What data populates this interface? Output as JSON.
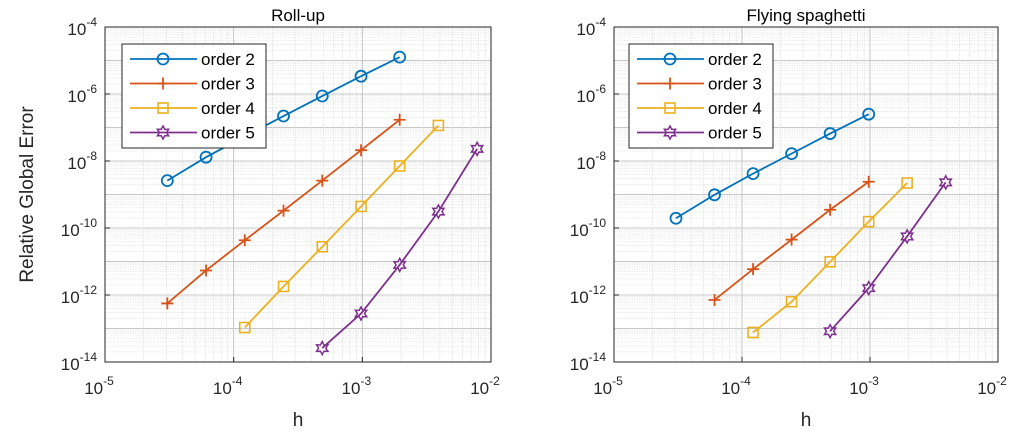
{
  "chart_data": [
    {
      "type": "line",
      "title": "Roll-up",
      "xlabel": "h",
      "ylabel": "Relative Global Error",
      "xscale": "log",
      "yscale": "log",
      "xlim": [
        1e-05,
        0.01
      ],
      "ylim": [
        1e-14,
        0.0001
      ],
      "grid": true,
      "legend_position": "top-left",
      "xticks": [
        {
          "base": "10",
          "exp": "-5"
        },
        {
          "base": "10",
          "exp": "-4"
        },
        {
          "base": "10",
          "exp": "-3"
        },
        {
          "base": "10",
          "exp": "-2"
        }
      ],
      "yticks": [
        {
          "base": "10",
          "exp": "-14"
        },
        {
          "base": "10",
          "exp": "-12"
        },
        {
          "base": "10",
          "exp": "-10"
        },
        {
          "base": "10",
          "exp": "-8"
        },
        {
          "base": "10",
          "exp": "-6"
        },
        {
          "base": "10",
          "exp": "-4"
        }
      ],
      "series": [
        {
          "name": "order 2",
          "color": "#0072BD",
          "marker": "circle",
          "x": [
            3.05e-05,
            6.1e-05,
            0.000122,
            0.000244,
            0.000488,
            0.000977,
            0.00195
          ],
          "y": [
            2.6e-09,
            1.3e-08,
            5.4e-08,
            2.2e-07,
            8.7e-07,
            3.4e-06,
            1.26e-05
          ]
        },
        {
          "name": "order 3",
          "color": "#D95319",
          "marker": "plus",
          "x": [
            3.05e-05,
            6.1e-05,
            0.000122,
            0.000244,
            0.000488,
            0.000977,
            0.00195
          ],
          "y": [
            5.6e-13,
            5.4e-12,
            4.3e-11,
            3.3e-10,
            2.6e-09,
            2.1e-08,
            1.7e-07
          ]
        },
        {
          "name": "order 4",
          "color": "#EDB120",
          "marker": "square",
          "x": [
            0.000122,
            0.000244,
            0.000488,
            0.000977,
            0.00195,
            0.0039
          ],
          "y": [
            1.07e-13,
            1.8e-12,
            2.75e-11,
            4.4e-10,
            7.1e-09,
            1.15e-07
          ]
        },
        {
          "name": "order 5",
          "color": "#7E2F8E",
          "marker": "hexagram",
          "x": [
            0.000488,
            0.000977,
            0.00195,
            0.0039,
            0.0078
          ],
          "y": [
            2.6e-14,
            2.8e-13,
            7.9e-12,
            3.1e-10,
            2.3e-08
          ]
        }
      ]
    },
    {
      "type": "line",
      "title": "Flying spaghetti",
      "xlabel": "h",
      "xscale": "log",
      "yscale": "log",
      "xlim": [
        1e-05,
        0.01
      ],
      "ylim": [
        1e-14,
        0.0001
      ],
      "grid": true,
      "legend_position": "top-left",
      "xticks": [
        {
          "base": "10",
          "exp": "-5"
        },
        {
          "base": "10",
          "exp": "-4"
        },
        {
          "base": "10",
          "exp": "-3"
        },
        {
          "base": "10",
          "exp": "-2"
        }
      ],
      "yticks": [
        {
          "base": "10",
          "exp": "-14"
        },
        {
          "base": "10",
          "exp": "-12"
        },
        {
          "base": "10",
          "exp": "-10"
        },
        {
          "base": "10",
          "exp": "-8"
        },
        {
          "base": "10",
          "exp": "-6"
        },
        {
          "base": "10",
          "exp": "-4"
        }
      ],
      "series": [
        {
          "name": "order 2",
          "color": "#0072BD",
          "marker": "circle",
          "x": [
            3.05e-05,
            6.1e-05,
            0.000122,
            0.000244,
            0.000488,
            0.000977
          ],
          "y": [
            1.95e-10,
            9.8e-10,
            4.2e-09,
            1.66e-08,
            6.6e-08,
            2.5e-07
          ]
        },
        {
          "name": "order 3",
          "color": "#D95319",
          "marker": "plus",
          "x": [
            6.1e-05,
            0.000122,
            0.000244,
            0.000488,
            0.000977
          ],
          "y": [
            7.1e-13,
            5.9e-12,
            4.5e-11,
            3.5e-10,
            2.4e-09
          ]
        },
        {
          "name": "order 4",
          "color": "#EDB120",
          "marker": "square",
          "x": [
            0.000122,
            0.000244,
            0.000488,
            0.000977,
            0.00195
          ],
          "y": [
            7.6e-14,
            6.3e-13,
            9.8e-12,
            1.55e-10,
            2.2e-09
          ]
        },
        {
          "name": "order 5",
          "color": "#7E2F8E",
          "marker": "hexagram",
          "x": [
            0.000488,
            0.000977,
            0.00195,
            0.0039
          ],
          "y": [
            8.3e-14,
            1.6e-12,
            5.6e-11,
            2.3e-09
          ]
        }
      ]
    }
  ]
}
